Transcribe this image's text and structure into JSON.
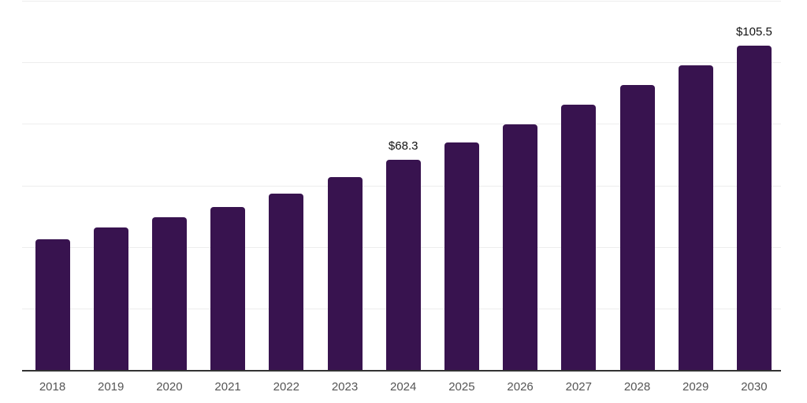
{
  "chart_data": {
    "type": "bar",
    "title": "",
    "xlabel": "",
    "ylabel": "",
    "categories": [
      "2018",
      "2019",
      "2020",
      "2021",
      "2022",
      "2023",
      "2024",
      "2025",
      "2026",
      "2027",
      "2028",
      "2029",
      "2030"
    ],
    "values": [
      42.5,
      46.3,
      49.6,
      52.9,
      57.3,
      62.7,
      68.3,
      74.0,
      79.8,
      86.2,
      92.6,
      99.0,
      105.5
    ],
    "data_labels": [
      {
        "category": "2024",
        "text": "$68.3"
      },
      {
        "category": "2030",
        "text": "$105.5"
      }
    ],
    "ylim": [
      0,
      120
    ],
    "gridline_values": [
      20,
      40,
      60,
      80,
      100,
      120
    ],
    "grid": "horizontal",
    "legend_position": "none",
    "y_axis_tick_labels_visible": false,
    "colors": {
      "bar": "#38134F",
      "axis_line": "#333333",
      "gridline": "#ededed",
      "tick_label": "#555555",
      "value_label": "#111111",
      "background": "#ffffff"
    }
  }
}
